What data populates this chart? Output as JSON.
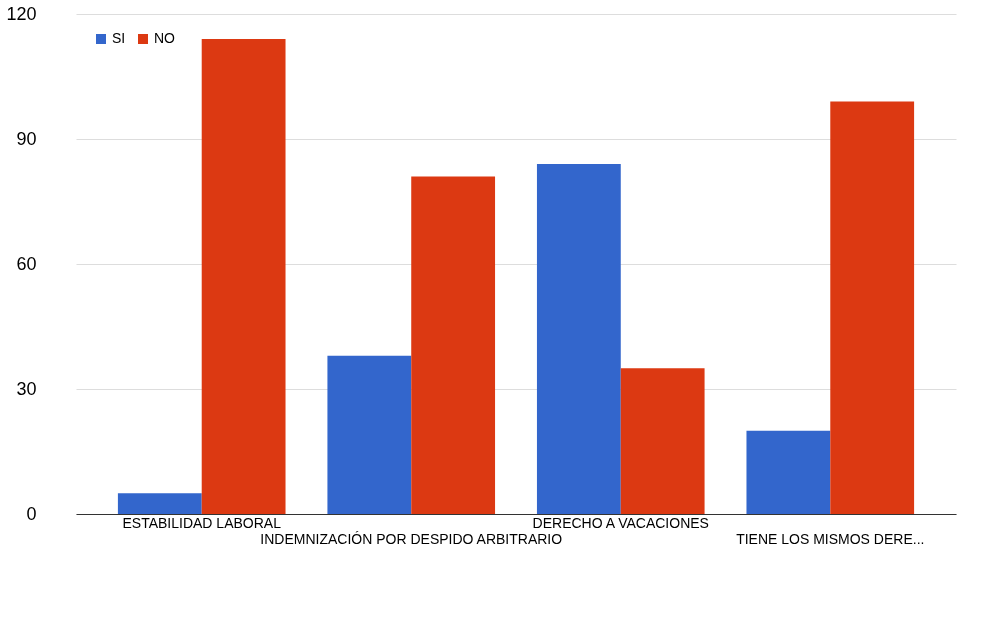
{
  "chart_data": {
    "type": "bar",
    "categories": [
      "ESTABILIDAD LABORAL",
      "INDEMNIZACIÓN POR DESPIDO ARBITRARIO",
      "DERECHO A VACACIONES",
      "TIENE LOS MISMOS DERE..."
    ],
    "series": [
      {
        "name": "SI",
        "color": "#3366cc",
        "values": [
          5,
          38,
          84,
          20
        ]
      },
      {
        "name": "NO",
        "color": "#dc3912",
        "values": [
          114,
          81,
          35,
          99
        ]
      }
    ],
    "ylim": [
      0,
      120
    ],
    "yticks": [
      0,
      30,
      60,
      90,
      120
    ],
    "grid": "y",
    "legend": "top left"
  }
}
